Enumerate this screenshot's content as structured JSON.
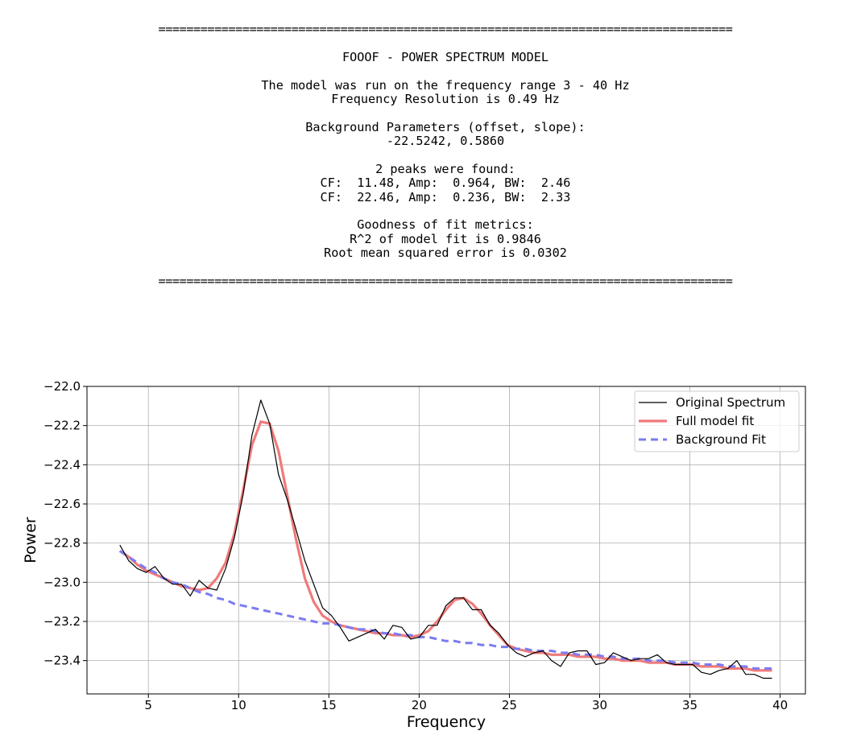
{
  "report": {
    "separator": "==================================================================================",
    "title": "FOOOF - POWER SPECTRUM MODEL",
    "freq_range_line": "The model was run on the frequency range 3 - 40 Hz",
    "resolution_line": "Frequency Resolution is 0.49 Hz",
    "background_header": "Background Parameters (offset, slope):",
    "background_values": "-22.5242, 0.5860",
    "peaks_header": "2 peaks were found:",
    "peaks": [
      "CF:  11.48, Amp:  0.964, BW:  2.46",
      "CF:  22.46, Amp:  0.236, BW:  2.33"
    ],
    "fit_header": "Goodness of fit metrics:",
    "r2_line": "R^2 of model fit is 0.9846",
    "rmse_line": "Root mean squared error is 0.0302"
  },
  "chart_data": {
    "type": "line",
    "xlabel": "Frequency",
    "ylabel": "Power",
    "xlim": [
      1.6,
      41.4
    ],
    "ylim": [
      -23.57,
      -22.0
    ],
    "xticks": [
      5,
      10,
      15,
      20,
      25,
      30,
      35,
      40
    ],
    "yticks": [
      -22.0,
      -22.2,
      -22.4,
      -22.6,
      -22.8,
      -23.0,
      -23.2,
      -23.4
    ],
    "grid": true,
    "legend_position": "upper right",
    "series": [
      {
        "name": "Original Spectrum",
        "color": "#000000",
        "style": "solid",
        "x": [
          3.42,
          3.91,
          4.39,
          4.88,
          5.37,
          5.86,
          6.35,
          6.84,
          7.32,
          7.81,
          8.3,
          8.79,
          9.28,
          9.77,
          10.25,
          10.74,
          11.23,
          11.72,
          12.21,
          12.7,
          13.18,
          13.67,
          14.16,
          14.65,
          15.14,
          15.63,
          16.11,
          16.6,
          17.09,
          17.58,
          18.07,
          18.55,
          19.04,
          19.53,
          20.02,
          20.51,
          21.0,
          21.48,
          21.97,
          22.46,
          22.95,
          23.44,
          23.93,
          24.41,
          24.9,
          25.39,
          25.88,
          26.37,
          26.86,
          27.34,
          27.83,
          28.32,
          28.81,
          29.3,
          29.79,
          30.27,
          30.76,
          31.25,
          31.74,
          32.23,
          32.71,
          33.2,
          33.69,
          34.18,
          34.67,
          35.16,
          35.64,
          36.13,
          36.62,
          37.11,
          37.6,
          38.09,
          38.57,
          39.06,
          39.55
        ],
        "y": [
          -22.81,
          -22.89,
          -22.93,
          -22.95,
          -22.92,
          -22.98,
          -23.01,
          -23.01,
          -23.07,
          -22.99,
          -23.03,
          -23.04,
          -22.93,
          -22.77,
          -22.55,
          -22.25,
          -22.07,
          -22.19,
          -22.45,
          -22.58,
          -22.73,
          -22.89,
          -23.01,
          -23.13,
          -23.17,
          -23.23,
          -23.3,
          -23.28,
          -23.26,
          -23.24,
          -23.29,
          -23.22,
          -23.23,
          -23.29,
          -23.28,
          -23.22,
          -23.22,
          -23.12,
          -23.08,
          -23.08,
          -23.14,
          -23.14,
          -23.22,
          -23.26,
          -23.32,
          -23.36,
          -23.38,
          -23.36,
          -23.35,
          -23.4,
          -23.43,
          -23.36,
          -23.35,
          -23.35,
          -23.42,
          -23.41,
          -23.36,
          -23.38,
          -23.4,
          -23.39,
          -23.39,
          -23.37,
          -23.41,
          -23.42,
          -23.42,
          -23.42,
          -23.46,
          -23.47,
          -23.45,
          -23.44,
          -23.4,
          -23.47,
          -23.47,
          -23.49,
          -23.49
        ]
      },
      {
        "name": "Full model fit",
        "color": "#f07a7a",
        "style": "solid",
        "x": [
          3.42,
          3.91,
          4.39,
          4.88,
          5.37,
          5.86,
          6.35,
          6.84,
          7.32,
          7.81,
          8.3,
          8.79,
          9.28,
          9.77,
          10.25,
          10.74,
          11.23,
          11.72,
          12.21,
          12.7,
          13.18,
          13.67,
          14.16,
          14.65,
          15.14,
          15.63,
          16.11,
          16.6,
          17.09,
          17.58,
          18.07,
          18.55,
          19.04,
          19.53,
          20.02,
          20.51,
          21.0,
          21.48,
          21.97,
          22.46,
          22.95,
          23.44,
          23.93,
          24.41,
          24.9,
          25.39,
          25.88,
          26.37,
          26.86,
          27.34,
          27.83,
          28.32,
          28.81,
          29.3,
          29.79,
          30.27,
          30.76,
          31.25,
          31.74,
          32.23,
          32.71,
          33.2,
          33.69,
          34.18,
          34.67,
          35.16,
          35.64,
          36.13,
          36.62,
          37.11,
          37.6,
          38.09,
          38.57,
          39.06,
          39.55
        ],
        "y": [
          -22.84,
          -22.87,
          -22.91,
          -22.94,
          -22.96,
          -22.98,
          -23.0,
          -23.02,
          -23.03,
          -23.04,
          -23.03,
          -22.98,
          -22.9,
          -22.75,
          -22.53,
          -22.3,
          -22.18,
          -22.19,
          -22.33,
          -22.56,
          -22.78,
          -22.98,
          -23.1,
          -23.17,
          -23.2,
          -23.22,
          -23.23,
          -23.24,
          -23.25,
          -23.26,
          -23.26,
          -23.27,
          -23.27,
          -23.28,
          -23.27,
          -23.25,
          -23.2,
          -23.14,
          -23.09,
          -23.08,
          -23.11,
          -23.16,
          -23.22,
          -23.27,
          -23.32,
          -23.34,
          -23.35,
          -23.36,
          -23.36,
          -23.37,
          -23.37,
          -23.37,
          -23.38,
          -23.38,
          -23.38,
          -23.39,
          -23.39,
          -23.4,
          -23.4,
          -23.4,
          -23.41,
          -23.41,
          -23.41,
          -23.42,
          -23.42,
          -23.42,
          -23.43,
          -23.43,
          -23.43,
          -23.44,
          -23.44,
          -23.44,
          -23.45,
          -23.45,
          -23.45
        ]
      },
      {
        "name": "Background Fit",
        "color": "#7b7bf2",
        "style": "dashed",
        "x": [
          3.42,
          3.91,
          4.39,
          4.88,
          5.37,
          5.86,
          6.35,
          6.84,
          7.32,
          7.81,
          8.3,
          8.79,
          9.28,
          9.77,
          10.25,
          10.74,
          11.23,
          11.72,
          12.21,
          12.7,
          13.18,
          13.67,
          14.16,
          14.65,
          15.14,
          15.63,
          16.11,
          16.6,
          17.09,
          17.58,
          18.07,
          18.55,
          19.04,
          19.53,
          20.02,
          20.51,
          21.0,
          21.48,
          21.97,
          22.46,
          22.95,
          23.44,
          23.93,
          24.41,
          24.9,
          25.39,
          25.88,
          26.37,
          26.86,
          27.34,
          27.83,
          28.32,
          28.81,
          29.3,
          29.79,
          30.27,
          30.76,
          31.25,
          31.74,
          32.23,
          32.71,
          33.2,
          33.69,
          34.18,
          34.67,
          35.16,
          35.64,
          36.13,
          36.62,
          37.11,
          37.6,
          38.09,
          38.57,
          39.06,
          39.55
        ],
        "y": [
          -22.84,
          -22.87,
          -22.9,
          -22.93,
          -22.95,
          -22.98,
          -23.0,
          -23.01,
          -23.03,
          -23.05,
          -23.06,
          -23.08,
          -23.09,
          -23.11,
          -23.12,
          -23.13,
          -23.14,
          -23.15,
          -23.16,
          -23.17,
          -23.18,
          -23.19,
          -23.2,
          -23.21,
          -23.21,
          -23.22,
          -23.23,
          -23.24,
          -23.24,
          -23.25,
          -23.26,
          -23.26,
          -23.27,
          -23.27,
          -23.28,
          -23.28,
          -23.29,
          -23.3,
          -23.3,
          -23.31,
          -23.31,
          -23.32,
          -23.32,
          -23.33,
          -23.33,
          -23.34,
          -23.34,
          -23.35,
          -23.35,
          -23.35,
          -23.36,
          -23.36,
          -23.37,
          -23.37,
          -23.37,
          -23.38,
          -23.38,
          -23.39,
          -23.39,
          -23.39,
          -23.4,
          -23.4,
          -23.4,
          -23.41,
          -23.41,
          -23.41,
          -23.42,
          -23.42,
          -23.42,
          -23.43,
          -23.43,
          -23.43,
          -23.44,
          -23.44,
          -23.44
        ]
      }
    ]
  }
}
